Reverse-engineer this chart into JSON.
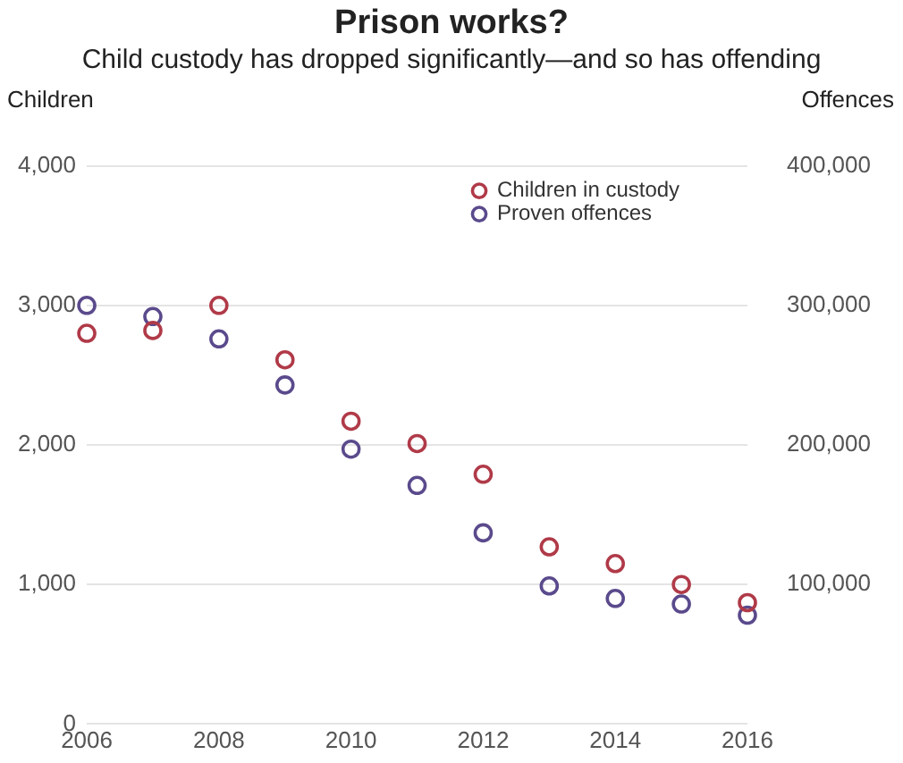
{
  "chart_data": {
    "type": "scatter",
    "title": "Prison works?",
    "subtitle": "Child custody has dropped significantly—and so has offending",
    "ylabel": "Children",
    "y2label": "Offences",
    "x": [
      2006,
      2007,
      2008,
      2009,
      2010,
      2011,
      2012,
      2013,
      2014,
      2015,
      2016
    ],
    "series": [
      {
        "name": "Children in custody",
        "color": "#b03a48",
        "values": [
          2800,
          2820,
          3000,
          2610,
          2170,
          2010,
          1790,
          1270,
          1150,
          1000,
          870
        ]
      },
      {
        "name": "Proven offences",
        "color": "#5a4a8c",
        "axis": "y2",
        "values": [
          300000,
          292000,
          276000,
          243000,
          197000,
          171000,
          137000,
          99000,
          90000,
          86000,
          78000
        ]
      }
    ],
    "xlim": [
      2006,
      2016
    ],
    "xticks": [
      2006,
      2008,
      2010,
      2012,
      2014,
      2016
    ],
    "ylim": [
      0,
      4000
    ],
    "yticks": [
      0,
      {
        "value": 1000,
        "label": "1,000"
      },
      {
        "value": 2000,
        "label": "2,000"
      },
      {
        "value": 3000,
        "label": "3,000"
      },
      {
        "value": 4000,
        "label": "4,000"
      }
    ],
    "y2lim": [
      0,
      400000
    ],
    "y2ticks": [
      {
        "value": 100000,
        "label": "100,000"
      },
      {
        "value": 200000,
        "label": "200,000"
      },
      {
        "value": 300000,
        "label": "300,000"
      },
      {
        "value": 400000,
        "label": "400,000"
      }
    ],
    "grid": "y",
    "legend": "top right",
    "marker": "circle"
  }
}
